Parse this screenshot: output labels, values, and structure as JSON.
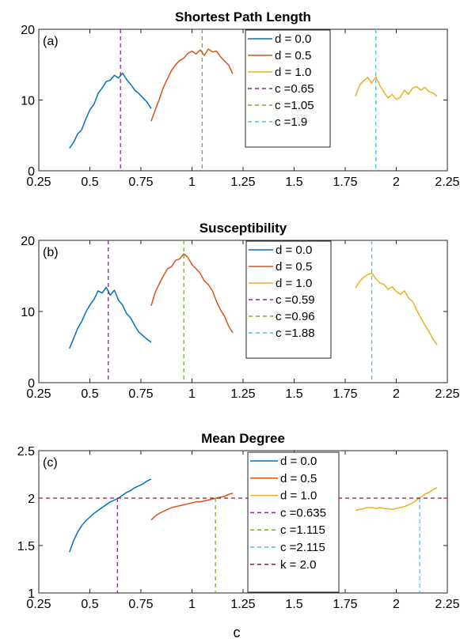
{
  "figure": {
    "xlabel": "c"
  },
  "chart_data": [
    {
      "type": "line",
      "title": "Shortest Path Length",
      "panel_label": "(a)",
      "xlabel": "",
      "ylabel": "",
      "xlim": [
        0.25,
        2.25
      ],
      "ylim": [
        0,
        20
      ],
      "xticks": [
        0.25,
        0.5,
        0.75,
        1,
        1.25,
        1.5,
        1.75,
        2,
        2.25
      ],
      "xtick_labels": [
        "0.25",
        "0.5",
        "0.75",
        "1",
        "1.25",
        "1.5",
        "1.75",
        "2",
        "2.25"
      ],
      "yticks": [
        0,
        10,
        20
      ],
      "ytick_labels": [
        "0",
        "10",
        "20"
      ],
      "legend_position": "top-center",
      "series": [
        {
          "name": "d = 0.0",
          "color": "#0072BD",
          "x": [
            0.4,
            0.42,
            0.44,
            0.46,
            0.48,
            0.5,
            0.52,
            0.54,
            0.56,
            0.58,
            0.6,
            0.62,
            0.64,
            0.66,
            0.68,
            0.7,
            0.72,
            0.74,
            0.76,
            0.78,
            0.8
          ],
          "y": [
            3.2,
            4.0,
            5.2,
            5.8,
            7.3,
            8.6,
            9.4,
            10.9,
            11.7,
            12.6,
            12.8,
            13.5,
            13.1,
            13.8,
            12.9,
            12.2,
            11.4,
            10.9,
            10.3,
            9.7,
            8.8
          ]
        },
        {
          "name": "d = 0.5",
          "color": "#D95319",
          "x": [
            0.8,
            0.82,
            0.84,
            0.86,
            0.88,
            0.9,
            0.92,
            0.94,
            0.96,
            0.98,
            1.0,
            1.02,
            1.04,
            1.06,
            1.08,
            1.1,
            1.12,
            1.14,
            1.16,
            1.18,
            1.2
          ],
          "y": [
            7.0,
            8.6,
            10.1,
            11.8,
            13.0,
            14.2,
            15.0,
            15.6,
            15.9,
            16.6,
            16.9,
            16.5,
            17.1,
            16.3,
            17.2,
            16.8,
            16.9,
            16.1,
            15.5,
            14.9,
            13.7
          ]
        },
        {
          "name": "d = 1.0",
          "color": "#EDB120",
          "x": [
            1.8,
            1.82,
            1.84,
            1.86,
            1.88,
            1.9,
            1.92,
            1.94,
            1.96,
            1.98,
            2.0,
            2.02,
            2.04,
            2.06,
            2.08,
            2.1,
            2.12,
            2.14,
            2.16,
            2.18,
            2.2
          ],
          "y": [
            10.5,
            12.1,
            12.7,
            13.2,
            12.4,
            13.3,
            12.0,
            11.1,
            10.3,
            10.8,
            10.1,
            10.4,
            11.4,
            10.8,
            11.7,
            11.9,
            11.4,
            11.8,
            11.2,
            11.0,
            10.5
          ]
        },
        {
          "name": "c =0.65",
          "color": "#7E2F8E",
          "dashed": true,
          "vline": 0.65
        },
        {
          "name": "c =1.05",
          "color": "#77AC30",
          "dashed": true,
          "vline": 1.05
        },
        {
          "name": "c =1.9",
          "color": "#4DBEEE",
          "dashed": true,
          "vline": 1.9
        }
      ]
    },
    {
      "type": "line",
      "title": "Susceptibility",
      "panel_label": "(b)",
      "xlabel": "",
      "ylabel": "",
      "xlim": [
        0.25,
        2.25
      ],
      "ylim": [
        0,
        20
      ],
      "xticks": [
        0.25,
        0.5,
        0.75,
        1,
        1.25,
        1.5,
        1.75,
        2,
        2.25
      ],
      "xtick_labels": [
        "0.25",
        "0.5",
        "0.75",
        "1",
        "1.25",
        "1.5",
        "1.75",
        "2",
        "2.25"
      ],
      "yticks": [
        0,
        10,
        20
      ],
      "ytick_labels": [
        "0",
        "10",
        "20"
      ],
      "legend_position": "top-center",
      "series": [
        {
          "name": "d = 0.0",
          "color": "#0072BD",
          "x": [
            0.4,
            0.42,
            0.44,
            0.46,
            0.48,
            0.5,
            0.52,
            0.54,
            0.56,
            0.58,
            0.6,
            0.62,
            0.64,
            0.66,
            0.68,
            0.7,
            0.72,
            0.74,
            0.76,
            0.78,
            0.8
          ],
          "y": [
            4.8,
            6.2,
            7.6,
            8.6,
            9.9,
            10.9,
            11.7,
            12.9,
            12.6,
            13.4,
            12.3,
            13.0,
            11.6,
            10.9,
            9.7,
            9.1,
            8.0,
            7.1,
            6.6,
            6.1,
            5.7
          ]
        },
        {
          "name": "d = 0.5",
          "color": "#D95319",
          "x": [
            0.8,
            0.82,
            0.84,
            0.86,
            0.88,
            0.9,
            0.92,
            0.94,
            0.96,
            0.98,
            1.0,
            1.02,
            1.04,
            1.06,
            1.08,
            1.1,
            1.12,
            1.14,
            1.16,
            1.18,
            1.2
          ],
          "y": [
            10.8,
            12.7,
            13.9,
            15.0,
            16.0,
            16.3,
            17.2,
            17.4,
            18.1,
            17.6,
            16.6,
            16.0,
            15.4,
            14.3,
            13.8,
            12.9,
            11.4,
            10.2,
            9.3,
            7.9,
            7.0
          ]
        },
        {
          "name": "d = 1.0",
          "color": "#EDB120",
          "x": [
            1.8,
            1.82,
            1.84,
            1.86,
            1.88,
            1.9,
            1.92,
            1.94,
            1.96,
            1.98,
            2.0,
            2.02,
            2.04,
            2.06,
            2.08,
            2.1,
            2.12,
            2.14,
            2.16,
            2.18,
            2.2
          ],
          "y": [
            13.3,
            14.2,
            14.8,
            15.2,
            15.4,
            14.6,
            14.0,
            13.8,
            13.1,
            13.5,
            12.8,
            12.4,
            12.9,
            11.9,
            11.4,
            10.2,
            9.1,
            8.1,
            7.2,
            6.1,
            5.3
          ]
        },
        {
          "name": "c =0.59",
          "color": "#7E2F8E",
          "dashed": true,
          "vline": 0.59
        },
        {
          "name": "c =0.96",
          "color": "#77AC30",
          "dashed": true,
          "vline": 0.96
        },
        {
          "name": "c =1.88",
          "color": "#4DBEEE",
          "dashed": true,
          "vline": 1.88
        }
      ]
    },
    {
      "type": "line",
      "title": "Mean Degree",
      "panel_label": "(c)",
      "xlabel": "c",
      "ylabel": "",
      "xlim": [
        0.25,
        2.25
      ],
      "ylim": [
        1,
        2.5
      ],
      "xticks": [
        0.25,
        0.5,
        0.75,
        1,
        1.25,
        1.5,
        1.75,
        2,
        2.25
      ],
      "xtick_labels": [
        "0.25",
        "0.5",
        "0.75",
        "1",
        "1.25",
        "1.5",
        "1.75",
        "2",
        "2.25"
      ],
      "yticks": [
        1,
        1.5,
        2,
        2.5
      ],
      "ytick_labels": [
        "1",
        "1.5",
        "2",
        "2.5"
      ],
      "legend_position": "top-center",
      "series": [
        {
          "name": "d = 0.0",
          "color": "#0072BD",
          "x": [
            0.4,
            0.42,
            0.44,
            0.46,
            0.48,
            0.5,
            0.52,
            0.54,
            0.56,
            0.58,
            0.6,
            0.62,
            0.64,
            0.66,
            0.68,
            0.7,
            0.72,
            0.74,
            0.76,
            0.78,
            0.8
          ],
          "y": [
            1.43,
            1.55,
            1.64,
            1.71,
            1.76,
            1.8,
            1.84,
            1.87,
            1.9,
            1.93,
            1.96,
            1.98,
            2.0,
            2.03,
            2.06,
            2.08,
            2.11,
            2.13,
            2.15,
            2.18,
            2.2
          ]
        },
        {
          "name": "d = 0.5",
          "color": "#D95319",
          "x": [
            0.8,
            0.82,
            0.84,
            0.86,
            0.88,
            0.9,
            0.92,
            0.94,
            0.96,
            0.98,
            1.0,
            1.02,
            1.04,
            1.06,
            1.08,
            1.1,
            1.12,
            1.14,
            1.16,
            1.18,
            1.2
          ],
          "y": [
            1.77,
            1.81,
            1.84,
            1.86,
            1.88,
            1.9,
            1.91,
            1.92,
            1.93,
            1.94,
            1.95,
            1.96,
            1.96,
            1.97,
            1.98,
            1.99,
            2.0,
            2.01,
            2.02,
            2.04,
            2.05
          ]
        },
        {
          "name": "d = 1.0",
          "color": "#EDB120",
          "x": [
            1.8,
            1.82,
            1.84,
            1.86,
            1.88,
            1.9,
            1.92,
            1.94,
            1.96,
            1.98,
            2.0,
            2.02,
            2.04,
            2.06,
            2.08,
            2.1,
            2.12,
            2.14,
            2.16,
            2.18,
            2.2
          ],
          "y": [
            1.87,
            1.88,
            1.89,
            1.9,
            1.9,
            1.89,
            1.9,
            1.89,
            1.89,
            1.88,
            1.89,
            1.9,
            1.91,
            1.93,
            1.95,
            1.98,
            2.01,
            2.04,
            2.06,
            2.09,
            2.11
          ]
        },
        {
          "name": "c =0.635",
          "color": "#7E2F8E",
          "dashed": true,
          "vline": 0.635
        },
        {
          "name": "c =1.115",
          "color": "#77AC30",
          "dashed": true,
          "vline": 1.115
        },
        {
          "name": "c =2.115",
          "color": "#4DBEEE",
          "dashed": true,
          "vline": 2.115
        },
        {
          "name": "k = 2.0",
          "color": "#A2142F",
          "dashed": true,
          "hline": 2.0
        }
      ]
    }
  ]
}
